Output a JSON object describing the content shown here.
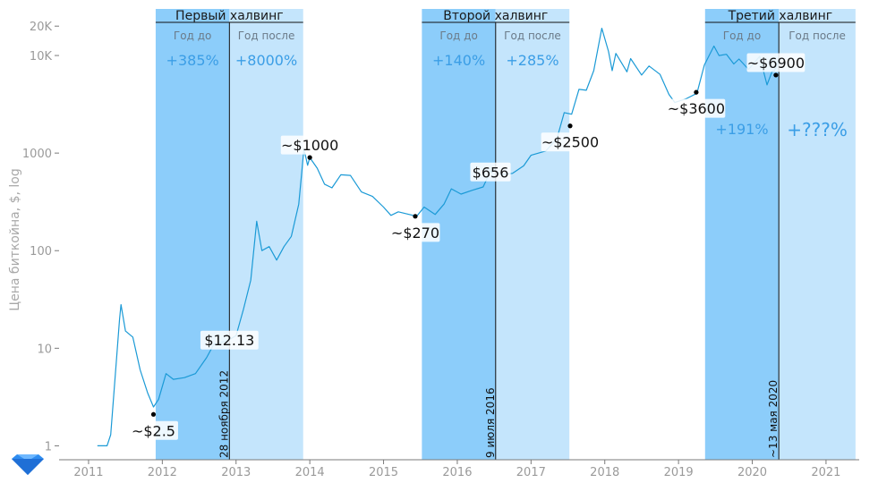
{
  "chart_data": {
    "type": "line",
    "title": "",
    "ylabel": "Цена биткойна, $, log",
    "xlabel": "",
    "yscale": "log",
    "ylim": [
      0.72,
      30000
    ],
    "xlim": [
      2010.6,
      2021.45
    ],
    "y_ticks": [
      {
        "value": 1,
        "label": "1"
      },
      {
        "value": 10,
        "label": "10"
      },
      {
        "value": 100,
        "label": "100"
      },
      {
        "value": 1000,
        "label": "1000"
      },
      {
        "value": 10000,
        "label": "10K"
      },
      {
        "value": 20000,
        "label": "20K"
      }
    ],
    "x_ticks": [
      {
        "value": 2011,
        "label": "2011"
      },
      {
        "value": 2012,
        "label": "2012"
      },
      {
        "value": 2013,
        "label": "2013"
      },
      {
        "value": 2014,
        "label": "2014"
      },
      {
        "value": 2015,
        "label": "2015"
      },
      {
        "value": 2016,
        "label": "2016"
      },
      {
        "value": 2017,
        "label": "2017"
      },
      {
        "value": 2018,
        "label": "2018"
      },
      {
        "value": 2019,
        "label": "2019"
      },
      {
        "value": 2020,
        "label": "2020"
      },
      {
        "value": 2021,
        "label": "2021"
      }
    ],
    "series": [
      {
        "name": "Цена биткойна",
        "color": "#1b9ad6",
        "points": [
          [
            2011.12,
            1.0
          ],
          [
            2011.25,
            1.0
          ],
          [
            2011.3,
            1.3
          ],
          [
            2011.38,
            8.0
          ],
          [
            2011.42,
            20.0
          ],
          [
            2011.44,
            28.0
          ],
          [
            2011.5,
            15.0
          ],
          [
            2011.6,
            13.0
          ],
          [
            2011.7,
            6.0
          ],
          [
            2011.8,
            3.5
          ],
          [
            2011.88,
            2.5
          ],
          [
            2011.95,
            3.0
          ],
          [
            2012.05,
            5.5
          ],
          [
            2012.15,
            4.8
          ],
          [
            2012.3,
            5.0
          ],
          [
            2012.45,
            5.5
          ],
          [
            2012.6,
            8.0
          ],
          [
            2012.7,
            11.0
          ],
          [
            2012.8,
            11.5
          ],
          [
            2012.9,
            12.13
          ],
          [
            2013.0,
            13.5
          ],
          [
            2013.1,
            25.0
          ],
          [
            2013.2,
            50.0
          ],
          [
            2013.28,
            200.0
          ],
          [
            2013.35,
            100.0
          ],
          [
            2013.45,
            110.0
          ],
          [
            2013.55,
            80.0
          ],
          [
            2013.65,
            110.0
          ],
          [
            2013.75,
            140.0
          ],
          [
            2013.85,
            300.0
          ],
          [
            2013.92,
            1100.0
          ],
          [
            2013.97,
            750.0
          ],
          [
            2014.0,
            900.0
          ],
          [
            2014.1,
            700.0
          ],
          [
            2014.2,
            480.0
          ],
          [
            2014.3,
            440.0
          ],
          [
            2014.42,
            600.0
          ],
          [
            2014.55,
            590.0
          ],
          [
            2014.7,
            400.0
          ],
          [
            2014.85,
            360.0
          ],
          [
            2015.0,
            280.0
          ],
          [
            2015.1,
            230.0
          ],
          [
            2015.2,
            250.0
          ],
          [
            2015.35,
            235.0
          ],
          [
            2015.45,
            225.0
          ],
          [
            2015.55,
            280.0
          ],
          [
            2015.7,
            235.0
          ],
          [
            2015.82,
            300.0
          ],
          [
            2015.92,
            430.0
          ],
          [
            2016.05,
            380.0
          ],
          [
            2016.2,
            415.0
          ],
          [
            2016.35,
            450.0
          ],
          [
            2016.45,
            650.0
          ],
          [
            2016.52,
            656.0
          ],
          [
            2016.6,
            600.0
          ],
          [
            2016.75,
            620.0
          ],
          [
            2016.9,
            740.0
          ],
          [
            2017.0,
            950.0
          ],
          [
            2017.2,
            1050.0
          ],
          [
            2017.35,
            1400.0
          ],
          [
            2017.45,
            2600.0
          ],
          [
            2017.55,
            2500.0
          ],
          [
            2017.65,
            4500.0
          ],
          [
            2017.75,
            4400.0
          ],
          [
            2017.85,
            7000.0
          ],
          [
            2017.96,
            19000.0
          ],
          [
            2018.05,
            11000.0
          ],
          [
            2018.1,
            7000.0
          ],
          [
            2018.15,
            10500.0
          ],
          [
            2018.3,
            6800.0
          ],
          [
            2018.35,
            9300.0
          ],
          [
            2018.5,
            6300.0
          ],
          [
            2018.6,
            7800.0
          ],
          [
            2018.75,
            6400.0
          ],
          [
            2018.87,
            4000.0
          ],
          [
            2018.95,
            3300.0
          ],
          [
            2019.1,
            3600.0
          ],
          [
            2019.25,
            4100.0
          ],
          [
            2019.35,
            8000.0
          ],
          [
            2019.48,
            12500.0
          ],
          [
            2019.55,
            10000.0
          ],
          [
            2019.65,
            10300.0
          ],
          [
            2019.75,
            8200.0
          ],
          [
            2019.82,
            9200.0
          ],
          [
            2019.95,
            7200.0
          ],
          [
            2020.1,
            9800.0
          ],
          [
            2020.2,
            5000.0
          ],
          [
            2020.27,
            6900.0
          ],
          [
            2020.3,
            7000.0
          ],
          [
            2020.36,
            8800.0
          ]
        ]
      }
    ],
    "halvings": [
      {
        "title": "Первый халвинг",
        "date_label": "28 ноября 2012",
        "date": 2012.91,
        "start": 2011.91,
        "end": 2013.91,
        "year_before_label": "Год до",
        "year_after_label": "Год после",
        "before_pct": "+385%",
        "after_pct": "+8000%",
        "before_pct_y": 7900,
        "after_pct_y": 7900
      },
      {
        "title": "Второй халвинг",
        "date_label": "9 июля 2016",
        "date": 2016.52,
        "start": 2015.52,
        "end": 2017.52,
        "year_before_label": "Год до",
        "year_after_label": "Год после",
        "before_pct": "+140%",
        "after_pct": "+285%",
        "before_pct_y": 7900,
        "after_pct_y": 7900
      },
      {
        "title": "Третий халвинг",
        "date_label": "~13 мая 2020",
        "date": 2020.36,
        "start": 2019.36,
        "end": 2021.4,
        "year_before_label": "Год до",
        "year_after_label": "Год после",
        "before_pct": "+191%",
        "after_pct": "+???%",
        "before_pct_y": 1560,
        "after_pct_y": 1560
      }
    ],
    "annotations": [
      {
        "x": 2011.88,
        "y": 2.1,
        "label": "~$2.5",
        "anchor": "below",
        "dot": true
      },
      {
        "x": 2012.91,
        "y": 12.13,
        "label": "$12.13",
        "anchor": "center",
        "dot": false
      },
      {
        "x": 2014.0,
        "y": 900,
        "label": "~$1000",
        "anchor": "above",
        "dot": true
      },
      {
        "x": 2015.43,
        "y": 225,
        "label": "~$270",
        "anchor": "below",
        "dot": true
      },
      {
        "x": 2016.45,
        "y": 640,
        "label": "$656",
        "anchor": "center",
        "dot": false
      },
      {
        "x": 2017.53,
        "y": 1900,
        "label": "~$2500",
        "anchor": "below",
        "dot": true
      },
      {
        "x": 2019.24,
        "y": 4200,
        "label": "~$3600",
        "anchor": "below",
        "dot": true
      },
      {
        "x": 2020.32,
        "y": 6300,
        "label": "~$6900",
        "anchor": "above",
        "dot": true
      }
    ],
    "colors": {
      "line": "#1b9ad6",
      "band_before": "#8ccdfa",
      "band_after": "#c4e5fc",
      "tick_text": "#9a9a9a",
      "pct_text": "#3b9ee6"
    }
  },
  "logo": {
    "icon": "diamond-logo-icon"
  }
}
